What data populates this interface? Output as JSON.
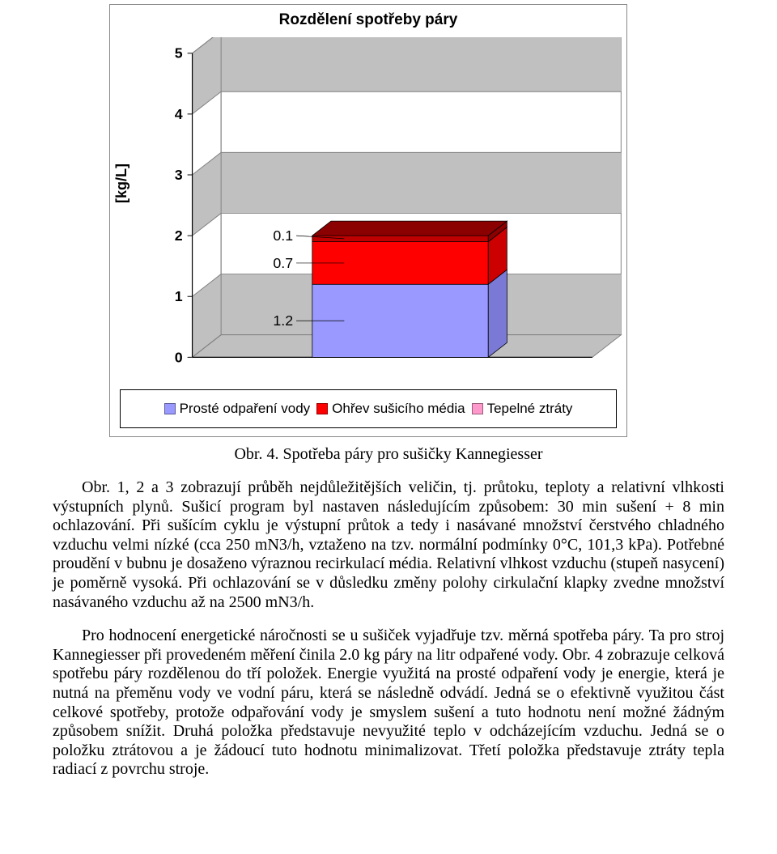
{
  "chart": {
    "type": "stacked-bar-3d",
    "title": "Rozdělení spotřeby páry",
    "ylabel": "[kg/L]",
    "ytick_labels": [
      "0",
      "1",
      "2",
      "3",
      "4",
      "5"
    ],
    "ymax": 5,
    "background_color": "#ffffff",
    "floor_color": "#c0c0c0",
    "back_wall_color": "#ffffff",
    "grid_color": "#808080",
    "grid_fill": "#c0c0c0",
    "legend": {
      "items": [
        {
          "label": "Prosté odpaření vody",
          "color": "#9999ff"
        },
        {
          "label": "Ohřev sušicího média",
          "color": "#ff0000"
        },
        {
          "label": "Tepelné ztráty",
          "color": "#ff99cc"
        }
      ]
    },
    "series": [
      {
        "name": "Prosté odpaření vody",
        "value": 1.2,
        "color_front": "#9999ff",
        "color_top": "#b3b3ff",
        "color_side": "#7a7ad6",
        "label": "1.2"
      },
      {
        "name": "Ohřev sušicího média",
        "value": 0.7,
        "color_front": "#ff0000",
        "color_top": "#ff3333",
        "color_side": "#cc0000",
        "label": "0.7"
      },
      {
        "name": "Tepelné ztráty",
        "value": 0.1,
        "color_front": "#bf0000",
        "color_top": "#8b0000",
        "color_side": "#8b0000",
        "label": "0.1"
      }
    ]
  },
  "caption": "Obr. 4. Spotřeba páry pro sušičky Kannegiesser",
  "paragraphs": {
    "p1": "Obr. 1, 2 a 3 zobrazují průběh nejdůležitějších veličin, tj. průtoku, teploty a relativní vlhkosti výstupních plynů. Sušicí program byl nastaven následujícím způsobem: 30 min sušení + 8 min ochlazování. Při sušícím cyklu je výstupní průtok a tedy i nasávané množství čerstvého chladného vzduchu velmi nízké (cca 250 mN3/h, vztaženo na tzv. normální podmínky 0°C, 101,3 kPa). Potřebné proudění v bubnu je dosaženo výraznou recirkulací média. Relativní vlhkost vzduchu (stupeň nasycení) je poměrně vysoká. Při ochlazování se v důsledku změny polohy cirkulační klapky zvedne množství nasávaného vzduchu až na 2500 mN3/h.",
    "p2": "Pro hodnocení energetické náročnosti se u sušiček vyjadřuje tzv. měrná spotřeba páry. Ta pro stroj Kannegiesser při provedeném měření činila 2.0 kg páry na litr odpařené vody. Obr. 4 zobrazuje celková spotřebu páry rozdělenou do tří položek. Energie využitá na prosté odpaření vody je energie, která je nutná na přeměnu vody ve vodní páru, která se následně odvádí. Jedná se o efektivně využitou část celkové spotřeby, protože odpařování vody je smyslem sušení a tuto hodnotu není možné žádným způsobem snížit. Druhá položka představuje nevyužité teplo v odcházejícím vzduchu. Jedná se o položku ztrátovou a je žádoucí tuto hodnotu minimalizovat. Třetí položka představuje ztráty tepla radiací z povrchu stroje."
  }
}
